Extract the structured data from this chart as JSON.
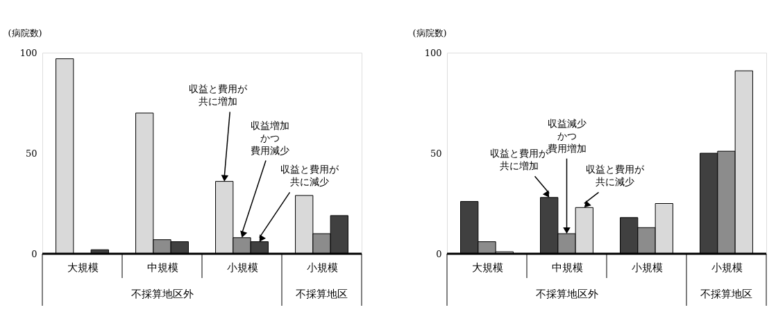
{
  "chart_data": [
    {
      "type": "bar",
      "ylabel": "(病院数)",
      "categories": [
        "大規模",
        "中規模",
        "小規模",
        "小規模"
      ],
      "ylim": [
        0,
        100
      ],
      "yticks": [
        0,
        50,
        100
      ],
      "grid": false,
      "series": [
        {
          "name": "収益と費用が共に増加",
          "color": "#d9d9d9",
          "values": [
            97,
            70,
            36,
            29
          ]
        },
        {
          "name": "収益増加かつ費用減少",
          "color": "#8c8c8c",
          "values": [
            0,
            7,
            8,
            10
          ]
        },
        {
          "name": "収益と費用が共に減少",
          "color": "#404040",
          "values": [
            2,
            6,
            6,
            19
          ]
        }
      ],
      "annotations": [
        "不採算地区外",
        "不採算地区"
      ]
    },
    {
      "type": "bar",
      "ylabel": "(病院数)",
      "categories": [
        "大規模",
        "中規模",
        "小規模",
        "小規模"
      ],
      "ylim": [
        0,
        100
      ],
      "yticks": [
        0,
        50,
        100
      ],
      "grid": false,
      "series": [
        {
          "name": "収益と費用が共に増加",
          "color": "#404040",
          "values": [
            26,
            28,
            18,
            50
          ]
        },
        {
          "name": "収益減少かつ費用増加",
          "color": "#8c8c8c",
          "values": [
            6,
            10,
            13,
            51
          ]
        },
        {
          "name": "収益と費用が共に減少",
          "color": "#d9d9d9",
          "values": [
            1,
            23,
            25,
            91
          ]
        }
      ],
      "annotations": [
        "不採算地区外",
        "不採算地区"
      ]
    }
  ]
}
